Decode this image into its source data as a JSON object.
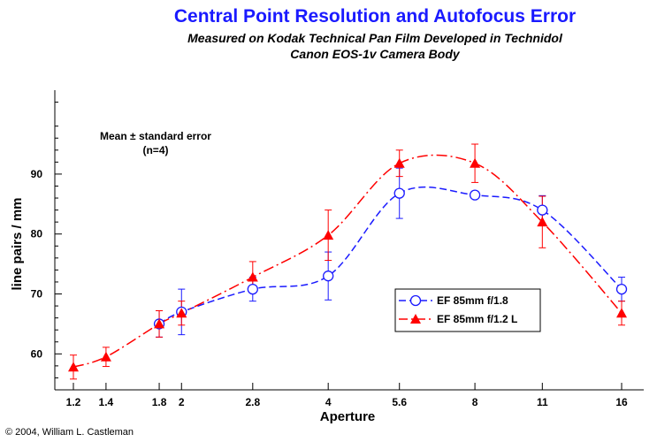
{
  "chart_data": {
    "type": "line",
    "title": "Central Point Resolution and Autofocus Error",
    "subtitle_lines": [
      "Measured on Kodak Technical Pan Film Developed in Technidol",
      "Canon EOS-1v Camera Body"
    ],
    "xlabel": "Aperture",
    "ylabel": "line pairs / mm",
    "x_scale": "log",
    "xlim": [
      1.2,
      16
    ],
    "ylim": [
      54,
      104
    ],
    "x_ticks": [
      1.2,
      1.4,
      1.8,
      2,
      2.8,
      4,
      5.6,
      8,
      11,
      16
    ],
    "x_tick_labels": [
      "1.2",
      "1.4",
      "1.8",
      "2",
      "2.8",
      "4",
      "5.6",
      "8",
      "11",
      "16"
    ],
    "y_ticks": [
      60,
      70,
      80,
      90
    ],
    "y_tick_labels": [
      "60",
      "70",
      "80",
      "90"
    ],
    "annotation": [
      "Mean ± standard error",
      "(n=4)"
    ],
    "legend_position": "lower-right",
    "series": [
      {
        "name": "EF 85mm f/1.8",
        "color": "#1a1aff",
        "marker": "open-circle",
        "line_style": "dashed",
        "x": [
          1.8,
          2,
          2.8,
          4,
          5.6,
          8,
          11,
          16
        ],
        "y": [
          65,
          67,
          70.8,
          73,
          86.8,
          86.5,
          84,
          70.8
        ],
        "err": [
          2.2,
          3.8,
          2,
          4,
          4.2,
          0,
          2.4,
          2
        ]
      },
      {
        "name": "EF 85mm f/1.2 L",
        "color": "#ff0000",
        "marker": "filled-triangle",
        "line_style": "dash-dot",
        "x": [
          1.2,
          1.4,
          1.8,
          2,
          2.8,
          4,
          5.6,
          8,
          11,
          16
        ],
        "y": [
          57.8,
          59.5,
          65,
          66.8,
          72.8,
          79.8,
          91.8,
          91.8,
          82,
          66.8
        ],
        "err": [
          2,
          1.6,
          2.2,
          2,
          2.6,
          4.2,
          2.2,
          3.2,
          4.3,
          2
        ]
      }
    ],
    "copyright": "© 2004, William L. Castleman"
  }
}
